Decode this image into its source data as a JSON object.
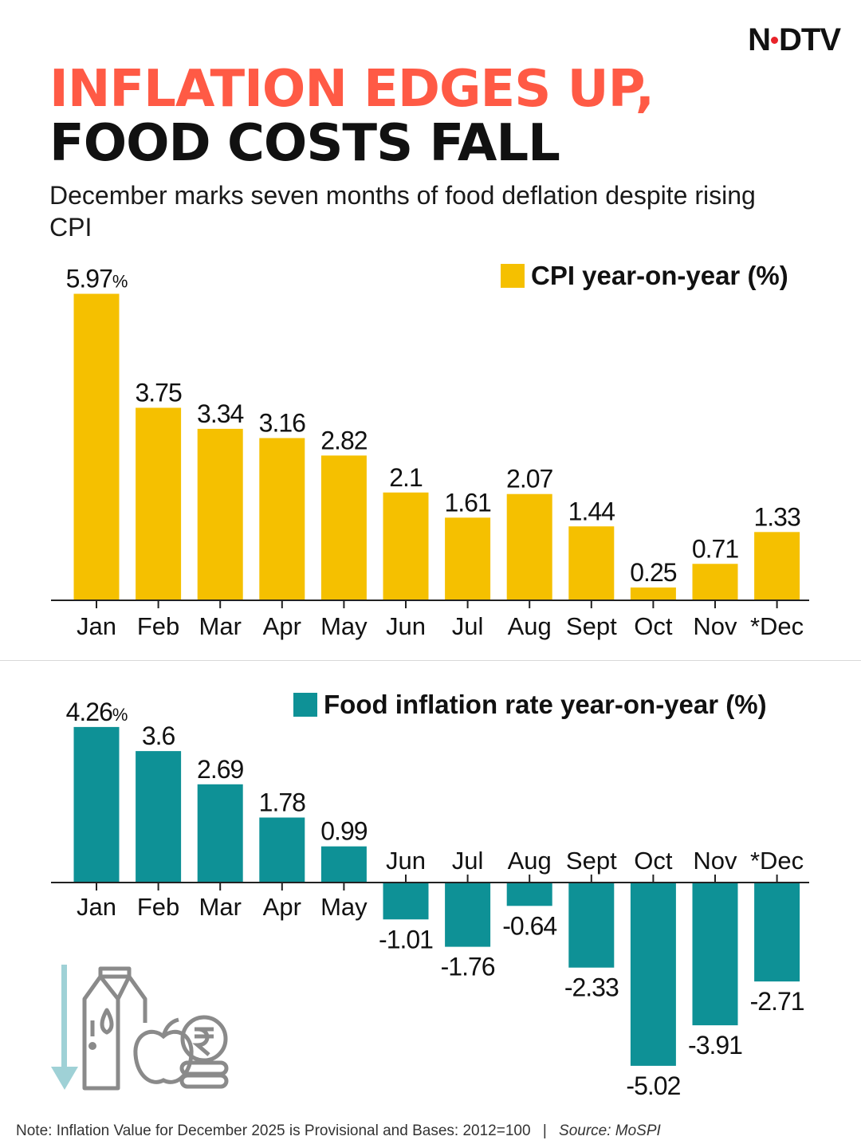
{
  "brand": "NDTV",
  "title": {
    "line1": "INFLATION EDGES UP,",
    "line2": "FOOD COSTS FALL"
  },
  "subtitle": "December marks seven months of food deflation despite rising CPI",
  "colors": {
    "accent": "#ff5a45",
    "cpi": "#f5c000",
    "food": "#0e9196",
    "arrow": "#9fd1d6",
    "icon": "#8a8a8a"
  },
  "icons": {
    "illustration": "food-basket-rupee-icon",
    "down_arrow": "down-arrow-icon"
  },
  "chart_data": [
    {
      "type": "bar",
      "title": "CPI year-on-year (%)",
      "categories": [
        "Jan",
        "Feb",
        "Mar",
        "Apr",
        "May",
        "Jun",
        "Jul",
        "Aug",
        "Sept",
        "Oct",
        "Nov",
        "*Dec"
      ],
      "values": [
        5.97,
        3.75,
        3.34,
        3.16,
        2.82,
        2.1,
        1.61,
        2.07,
        1.44,
        0.25,
        0.71,
        1.33
      ],
      "labels": [
        "5.97",
        "3.75",
        "3.34",
        "3.16",
        "2.82",
        "2.1",
        "1.61",
        "2.07",
        "1.44",
        "0.25",
        "0.71",
        "1.33"
      ],
      "unit_suffix": "%",
      "ylim": [
        0,
        6
      ]
    },
    {
      "type": "bar",
      "title": "Food inflation rate year-on-year (%)",
      "categories": [
        "Jan",
        "Feb",
        "Mar",
        "Apr",
        "May",
        "Jun",
        "Jul",
        "Aug",
        "Sept",
        "Oct",
        "Nov",
        "*Dec"
      ],
      "values": [
        4.26,
        3.6,
        2.69,
        1.78,
        0.99,
        -1.01,
        -1.76,
        -0.64,
        -2.33,
        -5.02,
        -3.91,
        -2.71
      ],
      "labels": [
        "4.26",
        "3.6",
        "2.69",
        "1.78",
        "0.99",
        "-1.01",
        "-1.76",
        "-0.64",
        "-2.33",
        "-5.02",
        "-3.91",
        "-2.71"
      ],
      "unit_suffix": "%",
      "ylim": [
        -5.02,
        4.26
      ]
    }
  ],
  "note": {
    "text": "Note: Inflation Value for December 2025 is Provisional and Bases: 2012=100",
    "separator": "|",
    "source": "Source: MoSPI"
  }
}
